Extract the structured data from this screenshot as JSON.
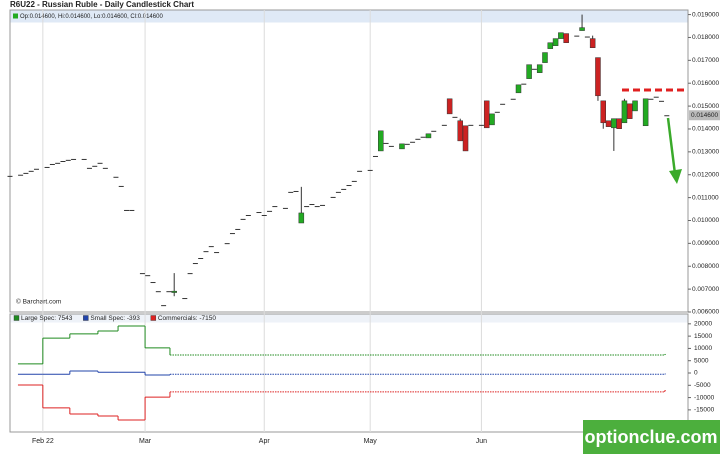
{
  "chart_data": [
    {
      "type": "candlestick",
      "title": "R6U22 - Russian Ruble - Daily Candlestick Chart",
      "info": "Op:0.014600, Hi:0.014600, Lo:0.014600, Cl:0.014600",
      "source": "© Barchart.com",
      "last_label": "0.014600",
      "up_color": "#22aa22",
      "down_color": "#cc2222",
      "flat_color": "#333333",
      "xlim": [
        0,
        128
      ],
      "ylim": [
        0.006,
        0.0192
      ],
      "yticks": [
        {
          "value": 0.006,
          "label": "0.006000"
        },
        {
          "value": 0.007,
          "label": "0.007000"
        },
        {
          "value": 0.008,
          "label": "0.008000"
        },
        {
          "value": 0.009,
          "label": "0.009000"
        },
        {
          "value": 0.01,
          "label": "0.010000"
        },
        {
          "value": 0.011,
          "label": "0.011000"
        },
        {
          "value": 0.012,
          "label": "0.012000"
        },
        {
          "value": 0.013,
          "label": "0.013000"
        },
        {
          "value": 0.014,
          "label": "0.014000"
        },
        {
          "value": 0.015,
          "label": "0.015000"
        },
        {
          "value": 0.016,
          "label": "0.016000"
        },
        {
          "value": 0.017,
          "label": "0.017000"
        },
        {
          "value": 0.018,
          "label": "0.018000"
        },
        {
          "value": 0.019,
          "label": "0.019000"
        }
      ],
      "x": [
        0,
        2,
        3,
        4,
        5,
        7,
        8,
        9,
        10,
        11,
        12,
        14,
        15,
        16,
        17,
        18,
        20,
        21,
        22,
        23,
        25,
        26,
        27,
        28,
        29,
        30,
        31,
        33,
        34,
        35,
        36,
        37,
        38,
        39,
        41,
        42,
        43,
        44,
        45,
        47,
        48,
        49,
        50,
        52,
        53,
        54,
        55,
        56,
        57,
        58,
        59,
        61,
        62,
        63,
        64,
        65,
        66,
        68,
        69,
        70,
        71,
        72,
        74,
        75,
        76,
        77,
        78,
        79,
        80,
        82,
        83,
        84,
        85,
        86,
        87,
        89,
        90,
        91,
        92,
        93,
        95,
        96,
        97,
        98,
        99,
        100,
        101,
        102,
        103,
        104,
        105,
        107,
        108,
        109,
        110,
        111,
        112,
        113,
        114,
        115,
        116,
        117,
        118,
        120,
        121,
        122,
        123,
        124
      ],
      "open": [
        0.01195,
        0.012,
        0.01208,
        0.01217,
        0.01226,
        0.01234,
        0.01247,
        0.01252,
        0.0126,
        0.01265,
        0.01269,
        0.01269,
        0.0123,
        0.01239,
        0.01252,
        0.0123,
        0.01191,
        0.01151,
        0.01046,
        0.01046,
        0.0077,
        0.00761,
        0.00731,
        0.00691,
        0.0063,
        0.00691,
        0.00685,
        0.00661,
        0.0077,
        0.00814,
        0.00836,
        0.00866,
        0.00888,
        0.00862,
        0.00901,
        0.00945,
        0.00963,
        0.01007,
        0.01024,
        0.01037,
        0.01024,
        0.01042,
        0.01063,
        0.01055,
        0.01125,
        0.01129,
        0.00989,
        0.01063,
        0.01072,
        0.01063,
        0.01068,
        0.01103,
        0.01125,
        0.01138,
        0.01155,
        0.01173,
        0.01217,
        0.01221,
        0.01282,
        0.01304,
        0.01339,
        0.01326,
        0.01313,
        0.01335,
        0.01344,
        0.01357,
        0.01366,
        0.01361,
        0.01392,
        0.01418,
        0.01532,
        0.01453,
        0.01436,
        0.01414,
        0.01418,
        0.01418,
        0.01523,
        0.01418,
        0.01475,
        0.0151,
        0.01532,
        0.01558,
        0.01598,
        0.0162,
        0.01663,
        0.01646,
        0.0169,
        0.01751,
        0.01764,
        0.01795,
        0.01817,
        0.01808,
        0.0183,
        0.01804,
        0.01795,
        0.01712,
        0.01523,
        0.01436,
        0.01405,
        0.01445,
        0.01427,
        0.0151,
        0.01479,
        0.01414,
        0.01532,
        0.01541,
        0.01523,
        0.0146
      ],
      "high": [
        0.01195,
        0.012,
        0.01208,
        0.01217,
        0.01226,
        0.01234,
        0.01247,
        0.01252,
        0.0126,
        0.01265,
        0.01269,
        0.01269,
        0.0123,
        0.01239,
        0.01252,
        0.0123,
        0.01191,
        0.01151,
        0.01046,
        0.01046,
        0.0077,
        0.00761,
        0.00731,
        0.00691,
        0.0063,
        0.00691,
        0.0077,
        0.00661,
        0.0077,
        0.00814,
        0.00836,
        0.00866,
        0.00888,
        0.00862,
        0.00901,
        0.00945,
        0.00963,
        0.01007,
        0.01024,
        0.01037,
        0.01024,
        0.01042,
        0.01063,
        0.01055,
        0.01125,
        0.01129,
        0.01147,
        0.01063,
        0.01072,
        0.01063,
        0.01068,
        0.01103,
        0.01125,
        0.01138,
        0.01155,
        0.01173,
        0.01217,
        0.01221,
        0.01282,
        0.01392,
        0.01339,
        0.01326,
        0.01335,
        0.01335,
        0.01344,
        0.01357,
        0.01366,
        0.01379,
        0.01392,
        0.01418,
        0.01532,
        0.01453,
        0.01445,
        0.01414,
        0.01418,
        0.01418,
        0.01523,
        0.01466,
        0.01475,
        0.0151,
        0.01532,
        0.01593,
        0.01598,
        0.01681,
        0.01663,
        0.01681,
        0.01734,
        0.01777,
        0.01795,
        0.01821,
        0.01817,
        0.01808,
        0.019,
        0.01804,
        0.01808,
        0.01712,
        0.01523,
        0.01436,
        0.01445,
        0.01445,
        0.01532,
        0.0151,
        0.01523,
        0.01532,
        0.01532,
        0.01541,
        0.01523,
        0.0146
      ],
      "low": [
        0.01195,
        0.012,
        0.01208,
        0.01217,
        0.01226,
        0.01234,
        0.01247,
        0.01252,
        0.0126,
        0.01265,
        0.01269,
        0.01269,
        0.0123,
        0.01239,
        0.01252,
        0.0123,
        0.01191,
        0.01151,
        0.01046,
        0.01046,
        0.0077,
        0.00761,
        0.00731,
        0.00691,
        0.0063,
        0.00691,
        0.00669,
        0.00661,
        0.0077,
        0.00814,
        0.00836,
        0.00866,
        0.00888,
        0.00862,
        0.00901,
        0.00945,
        0.00963,
        0.01007,
        0.01024,
        0.01037,
        0.01024,
        0.01042,
        0.01063,
        0.01055,
        0.01125,
        0.01129,
        0.00989,
        0.01063,
        0.01072,
        0.01063,
        0.01068,
        0.01103,
        0.01125,
        0.01138,
        0.01155,
        0.01173,
        0.01217,
        0.01221,
        0.01282,
        0.01304,
        0.01339,
        0.01326,
        0.01313,
        0.01335,
        0.01344,
        0.01357,
        0.01366,
        0.01361,
        0.01392,
        0.01418,
        0.01466,
        0.01453,
        0.01348,
        0.01304,
        0.01418,
        0.01418,
        0.01405,
        0.01418,
        0.01475,
        0.0151,
        0.01532,
        0.01558,
        0.01598,
        0.0162,
        0.01663,
        0.01646,
        0.0169,
        0.01751,
        0.01764,
        0.01795,
        0.01777,
        0.01808,
        0.0183,
        0.01804,
        0.01755,
        0.01523,
        0.01401,
        0.0141,
        0.01304,
        0.01401,
        0.01427,
        0.01445,
        0.01479,
        0.01414,
        0.01532,
        0.01541,
        0.01523,
        0.0146
      ],
      "close": [
        0.01195,
        0.012,
        0.01208,
        0.01217,
        0.01226,
        0.01234,
        0.01247,
        0.01252,
        0.0126,
        0.01265,
        0.01269,
        0.01269,
        0.0123,
        0.01239,
        0.01252,
        0.0123,
        0.01191,
        0.01151,
        0.01046,
        0.01046,
        0.0077,
        0.00761,
        0.00731,
        0.00691,
        0.0063,
        0.00691,
        0.00691,
        0.00661,
        0.0077,
        0.00814,
        0.00836,
        0.00866,
        0.00888,
        0.00862,
        0.00901,
        0.00945,
        0.00963,
        0.01007,
        0.01024,
        0.01037,
        0.01024,
        0.01042,
        0.01063,
        0.01055,
        0.01125,
        0.01129,
        0.01033,
        0.01063,
        0.01072,
        0.01063,
        0.01068,
        0.01103,
        0.01125,
        0.01138,
        0.01155,
        0.01173,
        0.01217,
        0.01221,
        0.01282,
        0.01392,
        0.01339,
        0.01326,
        0.01335,
        0.01335,
        0.01344,
        0.01357,
        0.01366,
        0.01379,
        0.01392,
        0.01418,
        0.01466,
        0.01453,
        0.01348,
        0.01304,
        0.01418,
        0.01418,
        0.01405,
        0.01466,
        0.01475,
        0.0151,
        0.01532,
        0.01593,
        0.01598,
        0.01681,
        0.01663,
        0.01681,
        0.01734,
        0.01777,
        0.01795,
        0.01821,
        0.01777,
        0.01808,
        0.01843,
        0.01804,
        0.01755,
        0.01545,
        0.01427,
        0.0141,
        0.01445,
        0.01401,
        0.01523,
        0.01445,
        0.01523,
        0.01532,
        0.01532,
        0.01541,
        0.01523,
        0.0146
      ]
    },
    {
      "type": "step",
      "xlim": [
        0,
        128
      ],
      "ylim": [
        -24000,
        24000
      ],
      "yticks": [
        -15000,
        -10000,
        -5000,
        0,
        5000,
        10000,
        15000,
        20000
      ],
      "xticks": [
        {
          "value": 6.2,
          "label": "Feb 22"
        },
        {
          "value": 25.5,
          "label": "Mar"
        },
        {
          "value": 48,
          "label": "Apr"
        },
        {
          "value": 68,
          "label": "May"
        },
        {
          "value": 89,
          "label": "Jun"
        }
      ],
      "x": [
        1.5,
        6.2,
        11.3,
        16.6,
        20.4,
        25.5,
        30.2,
        123.6
      ],
      "series": [
        {
          "name": "Large Spec: 7543",
          "color": "#1f8a1f",
          "values": [
            3700,
            14200,
            15900,
            17100,
            19100,
            10200,
            7300,
            7543
          ]
        },
        {
          "name": "Small Spec: -393",
          "color": "#2244aa",
          "values": [
            -500,
            -500,
            800,
            300,
            300,
            -800,
            -500,
            -393
          ]
        },
        {
          "name": "Commercials: -7150",
          "color": "#dd2222",
          "values": [
            -4900,
            -14200,
            -16700,
            -17500,
            -19100,
            -9800,
            -7700,
            -7150
          ]
        }
      ]
    },
    {
      "type": "watermark",
      "text": "optionclue.com"
    }
  ]
}
